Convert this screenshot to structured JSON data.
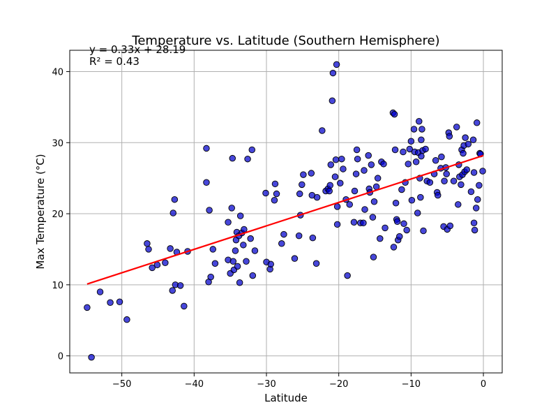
{
  "chart_data": {
    "type": "scatter",
    "title": "Temperature vs. Latitude (Southern Hemisphere)",
    "xlabel": "Latitude",
    "ylabel": "Max Temperature (°C)",
    "xlim": [
      -57.2,
      2.6
    ],
    "ylim": [
      -2.4,
      43.0
    ],
    "xticks": [
      -50,
      -40,
      -30,
      -20,
      -10,
      0
    ],
    "yticks": [
      0,
      10,
      20,
      30,
      40
    ],
    "grid": true,
    "colors": {
      "points": "#0000cc",
      "point_edge": "#000000",
      "regression": "#ff0000"
    },
    "annotation": {
      "equation": "y = 0.33x + 28.19",
      "r_squared": "R² = 0.43"
    },
    "regression": {
      "slope": 0.33,
      "intercept": 28.19,
      "x_range": [
        -54.8,
        0.0
      ]
    },
    "points": [
      [
        -54.8,
        6.8
      ],
      [
        -54.2,
        -0.2
      ],
      [
        -53.0,
        9.0
      ],
      [
        -51.6,
        7.5
      ],
      [
        -50.3,
        7.6
      ],
      [
        -49.3,
        5.1
      ],
      [
        -46.5,
        15.8
      ],
      [
        -46.3,
        15.0
      ],
      [
        -45.8,
        12.4
      ],
      [
        -45.1,
        12.8
      ],
      [
        -44.0,
        13.1
      ],
      [
        -43.3,
        15.1
      ],
      [
        -43.0,
        9.2
      ],
      [
        -42.9,
        20.1
      ],
      [
        -42.7,
        22.0
      ],
      [
        -42.6,
        10.0
      ],
      [
        -42.4,
        14.6
      ],
      [
        -41.9,
        9.9
      ],
      [
        -41.4,
        7.0
      ],
      [
        -40.9,
        14.7
      ],
      [
        -38.3,
        29.2
      ],
      [
        -38.3,
        24.4
      ],
      [
        -38.0,
        10.4
      ],
      [
        -37.9,
        20.5
      ],
      [
        -37.7,
        11.1
      ],
      [
        -37.4,
        15.0
      ],
      [
        -37.1,
        13.0
      ],
      [
        -35.3,
        18.8
      ],
      [
        -35.3,
        13.5
      ],
      [
        -35.0,
        11.6
      ],
      [
        -34.8,
        20.8
      ],
      [
        -34.7,
        27.8
      ],
      [
        -34.6,
        13.3
      ],
      [
        -34.5,
        12.1
      ],
      [
        -34.3,
        14.8
      ],
      [
        -34.2,
        16.3
      ],
      [
        -34.1,
        17.4
      ],
      [
        -34.0,
        12.6
      ],
      [
        -33.8,
        16.9
      ],
      [
        -33.7,
        10.3
      ],
      [
        -33.6,
        19.7
      ],
      [
        -33.4,
        17.3
      ],
      [
        -33.2,
        15.6
      ],
      [
        -33.1,
        17.8
      ],
      [
        -32.8,
        13.3
      ],
      [
        -32.6,
        27.7
      ],
      [
        -32.2,
        16.5
      ],
      [
        -32.0,
        29.0
      ],
      [
        -31.9,
        11.3
      ],
      [
        -31.6,
        14.8
      ],
      [
        -30.1,
        22.9
      ],
      [
        -30.0,
        13.2
      ],
      [
        -29.5,
        12.2
      ],
      [
        -29.4,
        12.9
      ],
      [
        -28.9,
        21.9
      ],
      [
        -28.8,
        24.2
      ],
      [
        -28.6,
        22.8
      ],
      [
        -27.9,
        15.8
      ],
      [
        -27.6,
        17.1
      ],
      [
        -26.1,
        13.7
      ],
      [
        -25.5,
        16.9
      ],
      [
        -25.4,
        22.8
      ],
      [
        -25.3,
        19.8
      ],
      [
        -25.1,
        24.1
      ],
      [
        -24.9,
        25.5
      ],
      [
        -23.8,
        25.7
      ],
      [
        -23.7,
        22.6
      ],
      [
        -23.6,
        16.6
      ],
      [
        -23.1,
        13.0
      ],
      [
        -23.0,
        22.3
      ],
      [
        -22.3,
        31.7
      ],
      [
        -21.8,
        23.2
      ],
      [
        -21.5,
        23.5
      ],
      [
        -21.3,
        23.2
      ],
      [
        -21.2,
        24.0
      ],
      [
        -21.1,
        26.9
      ],
      [
        -20.9,
        35.9
      ],
      [
        -20.8,
        39.8
      ],
      [
        -20.5,
        25.2
      ],
      [
        -20.4,
        27.6
      ],
      [
        -20.3,
        41.0
      ],
      [
        -20.2,
        18.5
      ],
      [
        -20.2,
        21.0
      ],
      [
        -19.8,
        24.3
      ],
      [
        -19.6,
        27.7
      ],
      [
        -19.4,
        26.3
      ],
      [
        -19.0,
        22.0
      ],
      [
        -18.8,
        11.3
      ],
      [
        -18.5,
        21.3
      ],
      [
        -17.9,
        18.8
      ],
      [
        -17.8,
        23.2
      ],
      [
        -17.6,
        25.6
      ],
      [
        -17.5,
        29.0
      ],
      [
        -17.4,
        27.7
      ],
      [
        -17.0,
        18.7
      ],
      [
        -16.6,
        18.7
      ],
      [
        -16.5,
        26.1
      ],
      [
        -16.4,
        20.6
      ],
      [
        -15.9,
        28.2
      ],
      [
        -15.8,
        23.5
      ],
      [
        -15.7,
        23.0
      ],
      [
        -15.5,
        26.9
      ],
      [
        -15.3,
        19.5
      ],
      [
        -15.2,
        13.9
      ],
      [
        -15.1,
        21.7
      ],
      [
        -14.8,
        23.8
      ],
      [
        -14.6,
        25.0
      ],
      [
        -14.3,
        16.5
      ],
      [
        -14.1,
        27.3
      ],
      [
        -13.8,
        27.0
      ],
      [
        -13.6,
        18.0
      ],
      [
        -12.5,
        34.2
      ],
      [
        -12.4,
        15.3
      ],
      [
        -12.3,
        34.0
      ],
      [
        -12.2,
        29.0
      ],
      [
        -12.1,
        21.5
      ],
      [
        -12.0,
        19.2
      ],
      [
        -11.9,
        18.9
      ],
      [
        -11.8,
        16.3
      ],
      [
        -11.6,
        16.8
      ],
      [
        -11.3,
        23.4
      ],
      [
        -11.1,
        28.7
      ],
      [
        -11.0,
        18.6
      ],
      [
        -10.8,
        24.4
      ],
      [
        -10.6,
        17.7
      ],
      [
        -10.4,
        27.0
      ],
      [
        -10.2,
        29.1
      ],
      [
        -10.0,
        30.2
      ],
      [
        -9.9,
        21.9
      ],
      [
        -9.6,
        31.9
      ],
      [
        -9.5,
        28.7
      ],
      [
        -9.3,
        27.3
      ],
      [
        -9.1,
        20.1
      ],
      [
        -9.0,
        28.6
      ],
      [
        -8.9,
        33.0
      ],
      [
        -8.8,
        25.0
      ],
      [
        -8.7,
        22.3
      ],
      [
        -8.6,
        28.1
      ],
      [
        -8.6,
        30.4
      ],
      [
        -8.5,
        31.9
      ],
      [
        -8.4,
        28.9
      ],
      [
        -8.3,
        17.6
      ],
      [
        -8.0,
        29.1
      ],
      [
        -7.8,
        24.6
      ],
      [
        -7.4,
        24.4
      ],
      [
        -6.8,
        25.6
      ],
      [
        -6.6,
        27.5
      ],
      [
        -6.4,
        23.0
      ],
      [
        -6.3,
        22.6
      ],
      [
        -5.9,
        26.4
      ],
      [
        -5.8,
        28.0
      ],
      [
        -5.5,
        18.2
      ],
      [
        -5.4,
        24.6
      ],
      [
        -5.2,
        26.5
      ],
      [
        -5.1,
        25.6
      ],
      [
        -5.0,
        17.8
      ],
      [
        -4.8,
        31.4
      ],
      [
        -4.7,
        30.9
      ],
      [
        -4.6,
        18.3
      ],
      [
        -4.1,
        24.6
      ],
      [
        -3.7,
        32.2
      ],
      [
        -3.5,
        21.3
      ],
      [
        -3.4,
        26.9
      ],
      [
        -3.3,
        25.2
      ],
      [
        -3.1,
        24.1
      ],
      [
        -3.0,
        29.0
      ],
      [
        -2.9,
        25.5
      ],
      [
        -2.8,
        28.5
      ],
      [
        -2.7,
        29.6
      ],
      [
        -2.6,
        25.9
      ],
      [
        -2.5,
        30.7
      ],
      [
        -2.3,
        26.2
      ],
      [
        -2.1,
        29.8
      ],
      [
        -1.7,
        23.1
      ],
      [
        -1.4,
        30.4
      ],
      [
        -1.3,
        18.7
      ],
      [
        -1.3,
        25.8
      ],
      [
        -1.2,
        17.7
      ],
      [
        -1.0,
        20.8
      ],
      [
        -0.9,
        32.8
      ],
      [
        -0.8,
        22.0
      ],
      [
        -0.6,
        24.0
      ],
      [
        -0.5,
        28.5
      ],
      [
        -0.4,
        28.4
      ],
      [
        -0.1,
        26.0
      ]
    ]
  }
}
